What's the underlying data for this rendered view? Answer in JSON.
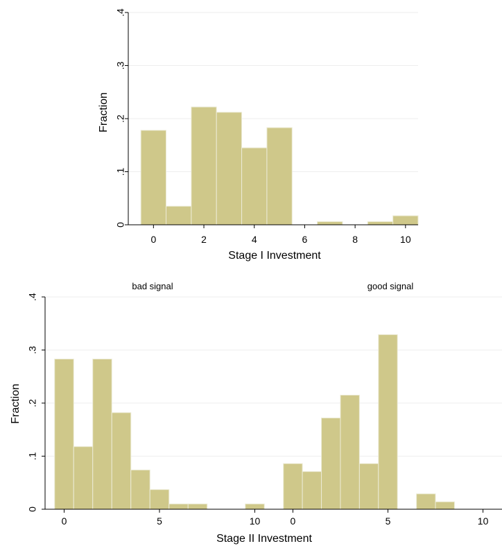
{
  "colors": {
    "bar_fill": "#cfc88a",
    "bar_stroke": "#ecebd6",
    "grid": "#eeeeee",
    "axis": "#000000"
  },
  "chart_data": [
    {
      "type": "bar",
      "title": "",
      "xlabel": "Stage I Investment",
      "ylabel": "Fraction",
      "xlim": [
        -1,
        10.5
      ],
      "ylim": [
        0,
        0.4
      ],
      "x_ticks": [
        0,
        2,
        4,
        6,
        8,
        10
      ],
      "x_tick_labels": [
        "0",
        "2",
        "4",
        "6",
        "8",
        "10"
      ],
      "y_ticks": [
        0,
        0.1,
        0.2,
        0.3,
        0.4
      ],
      "y_tick_labels": [
        "0",
        ".1",
        ".2",
        ".3",
        ".4"
      ],
      "grid": true,
      "bin_width": 1,
      "x": [
        0,
        1,
        2,
        3,
        4,
        5,
        6,
        7,
        8,
        9,
        10
      ],
      "values": [
        0.178,
        0.035,
        0.222,
        0.212,
        0.145,
        0.183,
        0.0,
        0.006,
        0.0,
        0.006,
        0.017
      ]
    },
    {
      "type": "bar",
      "title": "bad signal",
      "xlabel": "",
      "ylabel": "Fraction",
      "xlim": [
        -1,
        11
      ],
      "ylim": [
        0,
        0.4
      ],
      "x_ticks": [
        0,
        5,
        10
      ],
      "x_tick_labels": [
        "0",
        "5",
        "10"
      ],
      "y_ticks": [
        0,
        0.1,
        0.2,
        0.3,
        0.4
      ],
      "y_tick_labels": [
        "0",
        ".1",
        ".2",
        ".3",
        ".4"
      ],
      "grid": true,
      "bin_width": 1,
      "x": [
        0,
        1,
        2,
        3,
        4,
        5,
        6,
        7,
        8,
        9,
        10
      ],
      "values": [
        0.283,
        0.118,
        0.283,
        0.182,
        0.074,
        0.037,
        0.01,
        0.01,
        0.0,
        0.0,
        0.01
      ]
    },
    {
      "type": "bar",
      "title": "good signal",
      "xlabel": "Stage II Investment",
      "ylabel": "",
      "xlim": [
        -1,
        11
      ],
      "ylim": [
        0,
        0.4
      ],
      "x_ticks": [
        0,
        5,
        10
      ],
      "x_tick_labels": [
        "0",
        "5",
        "10"
      ],
      "y_ticks": [
        0,
        0.1,
        0.2,
        0.3,
        0.4
      ],
      "y_tick_labels": [
        "0",
        ".1",
        ".2",
        ".3",
        ".4"
      ],
      "grid": true,
      "bin_width": 1,
      "x": [
        0,
        1,
        2,
        3,
        4,
        5,
        6,
        7,
        8,
        9,
        10
      ],
      "values": [
        0.086,
        0.071,
        0.172,
        0.215,
        0.086,
        0.329,
        0.0,
        0.029,
        0.014,
        0.0,
        0.0
      ]
    }
  ]
}
